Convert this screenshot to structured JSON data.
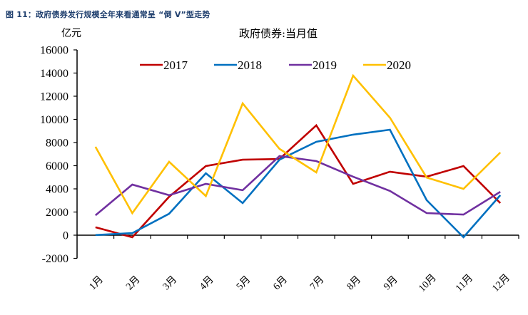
{
  "figure": {
    "caption": "图 11：政府债券发行规模全年来看通常呈 “倒 V”型走势"
  },
  "chart_data": {
    "type": "line",
    "title": "政府债券:当月值",
    "ylabel": "亿元",
    "xlabel": "",
    "categories": [
      "1月",
      "2月",
      "3月",
      "4月",
      "5月",
      "6月",
      "7月",
      "8月",
      "9月",
      "10月",
      "11月",
      "12月"
    ],
    "ylim": [
      -2000,
      16000
    ],
    "yticks": [
      -2000,
      0,
      2000,
      4000,
      6000,
      8000,
      10000,
      12000,
      14000,
      16000
    ],
    "grid": false,
    "legend_position": "top",
    "series": [
      {
        "name": "2017",
        "color": "#C00000",
        "values": [
          680,
          -180,
          3320,
          5970,
          6520,
          6580,
          9480,
          4430,
          5480,
          5050,
          5970,
          2770
        ]
      },
      {
        "name": "2018",
        "color": "#0070C0",
        "values": [
          10,
          180,
          1850,
          5350,
          2770,
          6520,
          8060,
          8680,
          9110,
          3020,
          -180,
          3450
        ]
      },
      {
        "name": "2019",
        "color": "#7030A0",
        "values": [
          1720,
          4370,
          3450,
          4430,
          3880,
          6830,
          6400,
          5050,
          3820,
          1910,
          1780,
          3750
        ]
      },
      {
        "name": "2020",
        "color": "#FFC000",
        "values": [
          7630,
          1900,
          6340,
          3380,
          11380,
          7450,
          5420,
          13780,
          10150,
          4980,
          4000,
          7140
        ]
      }
    ]
  }
}
